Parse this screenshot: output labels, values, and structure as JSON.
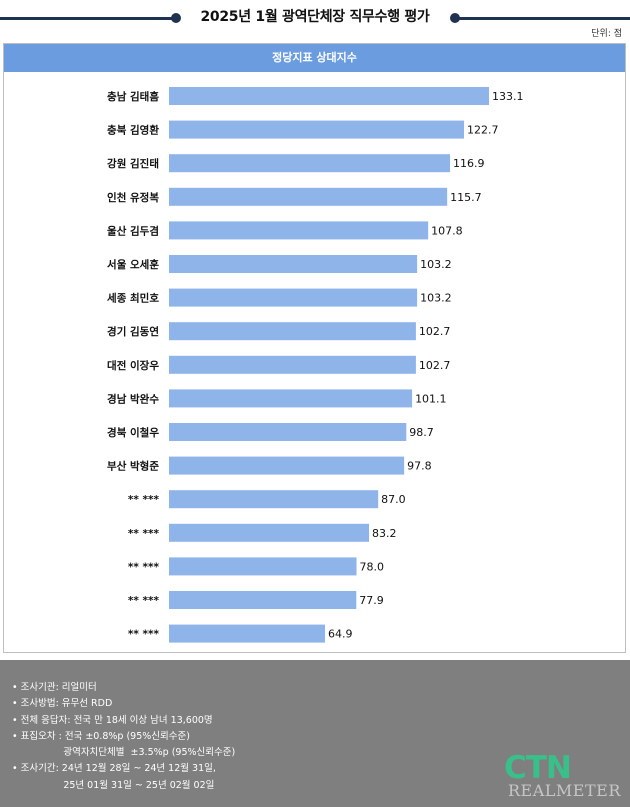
{
  "header": {
    "title": "2025년 1월 광역단체장 직무수행 평가",
    "unit": "단위: 점"
  },
  "panel": {
    "header": "정당지표 상대지수"
  },
  "colors": {
    "bar": "#8fb4ea",
    "header_bg": "#6b9ce0",
    "rule": "#1f3350",
    "footer_bg": "#7f7f7f",
    "logo": "#39c08a"
  },
  "chart_data": {
    "type": "bar",
    "orientation": "horizontal",
    "categories": [
      "충남 김태흠",
      "충북 김영환",
      "강원 김진태",
      "인천 유정복",
      "울산 김두겸",
      "서울 오세훈",
      "세종 최민호",
      "경기 김동연",
      "대전 이장우",
      "경남 박완수",
      "경북 이철우",
      "부산 박형준",
      "**  ***",
      "**  ***",
      "**  ***",
      "**  ***",
      "**  ***"
    ],
    "values": [
      133.1,
      122.7,
      116.9,
      115.7,
      107.8,
      103.2,
      103.2,
      102.7,
      102.7,
      101.1,
      98.7,
      97.8,
      87.0,
      83.2,
      78.0,
      77.9,
      64.9
    ],
    "value_labels": [
      "133.1",
      "122.7",
      "116.9",
      "115.7",
      "107.8",
      "103.2",
      "103.2",
      "102.7",
      "102.7",
      "101.1",
      "98.7",
      "97.8",
      "87.0",
      "83.2",
      "78.0",
      "77.9",
      "64.9"
    ],
    "grid": false,
    "legend": false
  },
  "footer": {
    "notes": [
      "• 조사기관: 리얼미터",
      "• 조사방법: 유무선 RDD",
      "• 전체 응답자: 전국 만 18세 이상 남녀 13,600명",
      "• 표집오차 : 전국 ±0.8%p (95%신뢰수준)",
      "                 광역자치단체별  ±3.5%p (95%신뢰수준)",
      "• 조사기간: 24년 12월 28일 ~ 24년 12월 31일,",
      "                 25년 01월 31일 ~ 25년 02월 02일"
    ],
    "logo_main": "CTN",
    "logo_sub": "REALMETER"
  }
}
